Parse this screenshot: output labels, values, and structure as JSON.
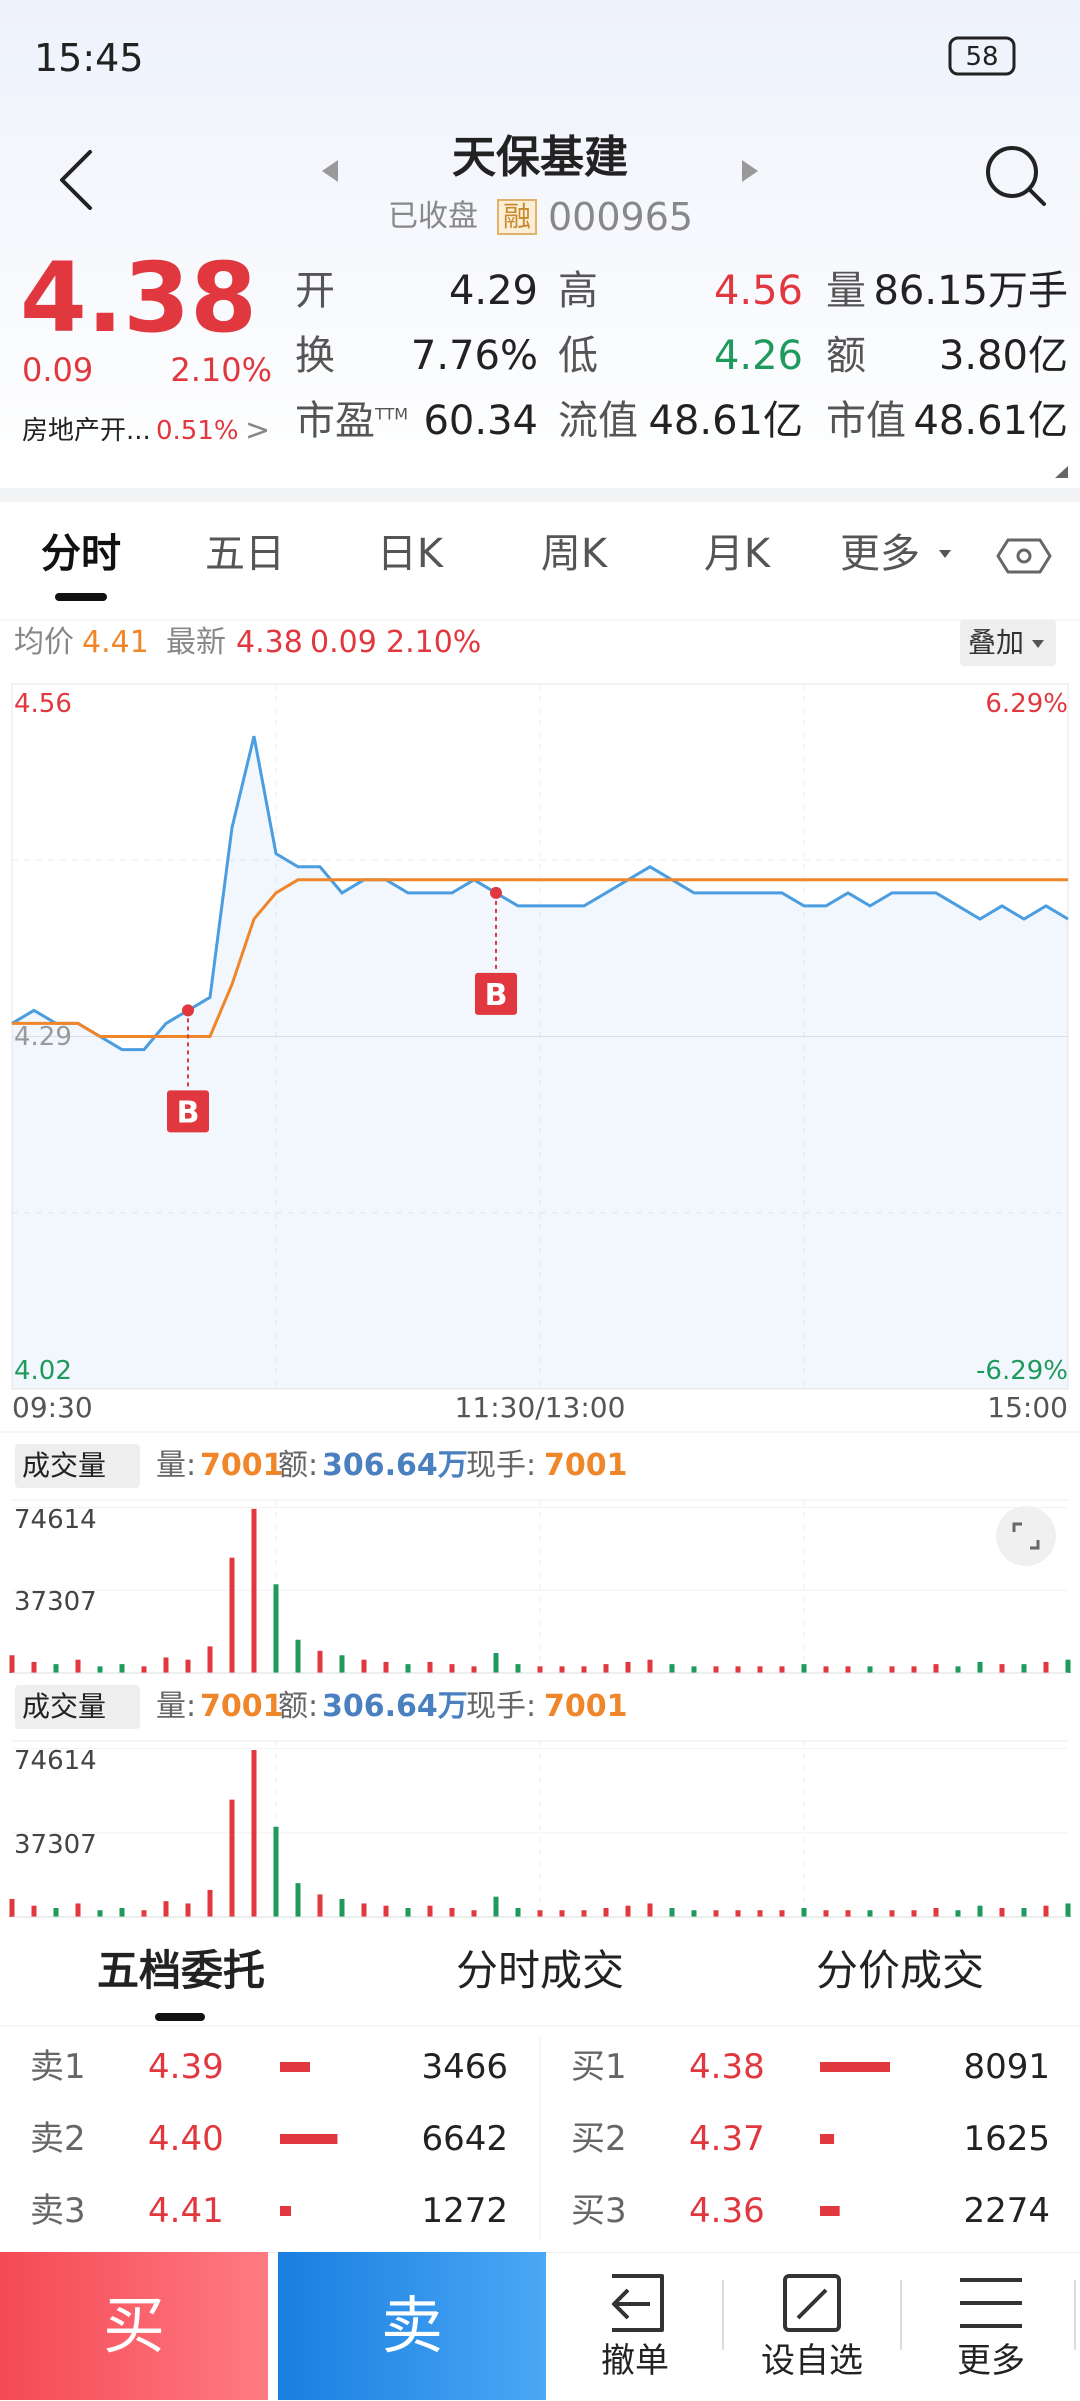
{
  "status_bar": {
    "time": "15:45",
    "battery": "58"
  },
  "header": {
    "title": "天保基建",
    "status": "已收盘",
    "badge": "融",
    "code": "000965"
  },
  "quote": {
    "price": "4.38",
    "change": "0.09",
    "change_pct": "2.10%",
    "sector": "房地产开...",
    "sector_pct": "0.51%"
  },
  "stats": [
    [
      {
        "label": "开",
        "value": "4.29",
        "color": "#222222"
      },
      {
        "label": "高",
        "value": "4.56",
        "color": "#e0383e"
      },
      {
        "label": "量",
        "value": "86.15万手",
        "color": "#222222"
      }
    ],
    [
      {
        "label": "换",
        "value": "7.76%",
        "color": "#222222"
      },
      {
        "label": "低",
        "value": "4.26",
        "color": "#1e9a5c"
      },
      {
        "label": "额",
        "value": "3.80亿",
        "color": "#222222"
      }
    ],
    [
      {
        "label": "市盈",
        "sup": "TTM",
        "value": "60.34",
        "color": "#222222"
      },
      {
        "label": "流值",
        "value": "48.61亿",
        "color": "#222222"
      },
      {
        "label": "市值",
        "value": "48.61亿",
        "color": "#222222"
      }
    ]
  ],
  "tabs": [
    "分时",
    "五日",
    "日K",
    "周K",
    "月K",
    "更多"
  ],
  "info": {
    "avg_label": "均价",
    "avg": "4.41",
    "last_label": "最新",
    "last": "4.38",
    "change": "0.09",
    "change_pct": "2.10%",
    "overlay": "叠加"
  },
  "intraday": {
    "ylim": [
      4.02,
      4.56
    ],
    "yticks": [
      4.56,
      4.29,
      4.02
    ],
    "pct_labels": [
      "6.29%",
      "-6.29%"
    ],
    "time_labels": [
      "09:30",
      "11:30/13:00",
      "15:00"
    ],
    "price_color": "#4a9de0",
    "avg_color": "#f0862a",
    "price": [
      4.3,
      4.31,
      4.3,
      4.3,
      4.29,
      4.28,
      4.28,
      4.3,
      4.31,
      4.32,
      4.45,
      4.52,
      4.43,
      4.42,
      4.42,
      4.4,
      4.41,
      4.41,
      4.4,
      4.4,
      4.4,
      4.41,
      4.4,
      4.39,
      4.39,
      4.39,
      4.39,
      4.4,
      4.41,
      4.42,
      4.41,
      4.4,
      4.4,
      4.4,
      4.4,
      4.4,
      4.39,
      4.39,
      4.4,
      4.39,
      4.4,
      4.4,
      4.4,
      4.39,
      4.38,
      4.39,
      4.38,
      4.39,
      4.38
    ],
    "avg": [
      4.3,
      4.3,
      4.3,
      4.3,
      4.29,
      4.29,
      4.29,
      4.29,
      4.29,
      4.29,
      4.33,
      4.38,
      4.4,
      4.41,
      4.41,
      4.41,
      4.41,
      4.41,
      4.41,
      4.41,
      4.41,
      4.41,
      4.41,
      4.41,
      4.41,
      4.41,
      4.41,
      4.41,
      4.41,
      4.41,
      4.41,
      4.41,
      4.41,
      4.41,
      4.41,
      4.41,
      4.41,
      4.41,
      4.41,
      4.41,
      4.41,
      4.41,
      4.41,
      4.41,
      4.41,
      4.41,
      4.41,
      4.41,
      4.41
    ],
    "trade_marks": [
      {
        "label": "B",
        "at": 8
      },
      {
        "label": "B",
        "at": 22
      }
    ]
  },
  "volume_panels": [
    {
      "indicator": "成交量",
      "vol_label": "量:",
      "vol": "7001",
      "amt_label": "额:",
      "amt": "306.64万",
      "hand_label": "现手:",
      "hand": "7001",
      "ylim": [
        0,
        78000
      ],
      "yticks": [
        74614,
        37307
      ],
      "values": [
        8000,
        5000,
        4000,
        6000,
        3000,
        4000,
        3000,
        7000,
        6000,
        12000,
        52000,
        74000,
        40000,
        15000,
        10000,
        8000,
        6000,
        5000,
        4000,
        5000,
        4000,
        3000,
        9000,
        4000,
        3000,
        3000,
        3000,
        4000,
        5000,
        6000,
        4000,
        3000,
        3000,
        3000,
        3000,
        3000,
        4000,
        3000,
        3000,
        3000,
        3000,
        3000,
        4000,
        3000,
        5000,
        4000,
        4000,
        5000,
        6000
      ]
    },
    {
      "indicator": "成交量",
      "vol_label": "量:",
      "vol": "7001",
      "amt_label": "额:",
      "amt": "306.64万",
      "hand_label": "现手:",
      "hand": "7001",
      "ylim": [
        0,
        78000
      ],
      "yticks": [
        74614,
        37307
      ],
      "values": [
        8000,
        5000,
        4000,
        6000,
        3000,
        4000,
        3000,
        7000,
        6000,
        12000,
        52000,
        74000,
        40000,
        15000,
        10000,
        8000,
        6000,
        5000,
        4000,
        5000,
        4000,
        3000,
        9000,
        4000,
        3000,
        3000,
        3000,
        4000,
        5000,
        6000,
        4000,
        3000,
        3000,
        3000,
        3000,
        3000,
        4000,
        3000,
        3000,
        3000,
        3000,
        3000,
        4000,
        3000,
        5000,
        4000,
        4000,
        5000,
        6000
      ]
    }
  ],
  "order_tabs": [
    "五档委托",
    "分时成交",
    "分价成交"
  ],
  "asks": [
    {
      "label": "卖1",
      "price": "4.39",
      "volume": 3466
    },
    {
      "label": "卖2",
      "price": "4.40",
      "volume": 6642
    },
    {
      "label": "卖3",
      "price": "4.41",
      "volume": 1272
    }
  ],
  "bids": [
    {
      "label": "买1",
      "price": "4.38",
      "volume": 8091
    },
    {
      "label": "买2",
      "price": "4.37",
      "volume": 1625
    },
    {
      "label": "买3",
      "price": "4.36",
      "volume": 2274
    }
  ],
  "bottom_bar": {
    "buy": "买",
    "sell": "卖",
    "actions": [
      "撤单",
      "设自选",
      "更多"
    ]
  }
}
